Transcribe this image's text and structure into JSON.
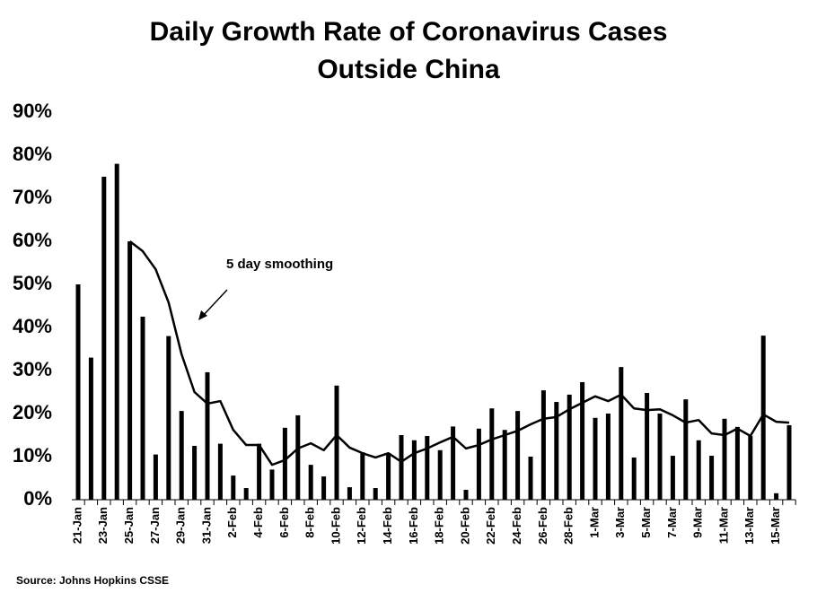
{
  "chart_data": {
    "type": "bar",
    "title": [
      "Daily Growth Rate of Coronavirus Cases",
      "Outside China"
    ],
    "source": "Source: Johns Hopkins CSSE",
    "annotation": "5 day smoothing",
    "categories": [
      "21-Jan",
      null,
      "23-Jan",
      null,
      "25-Jan",
      null,
      "27-Jan",
      null,
      "29-Jan",
      null,
      "31-Jan",
      null,
      "2-Feb",
      null,
      "4-Feb",
      null,
      "6-Feb",
      null,
      "8-Feb",
      null,
      "10-Feb",
      null,
      "12-Feb",
      null,
      "14-Feb",
      null,
      "16-Feb",
      null,
      "18-Feb",
      null,
      "20-Feb",
      null,
      "22-Feb",
      null,
      "24-Feb",
      null,
      "26-Feb",
      null,
      "28-Feb",
      null,
      "1-Mar",
      null,
      "3-Mar",
      null,
      "5-Mar",
      null,
      "7-Mar",
      null,
      "9-Mar",
      null,
      "11-Mar",
      null,
      "13-Mar",
      null,
      "15-Mar",
      null
    ],
    "series": [
      {
        "type": "bar",
        "color": "#000000",
        "values": [
          50,
          33,
          75,
          78,
          60,
          42.5,
          10.5,
          38,
          20.6,
          12.5,
          29.6,
          13,
          5.6,
          2.7,
          13,
          7,
          16.7,
          19.6,
          8.1,
          5.4,
          26.5,
          2.9,
          11,
          2.7,
          10.8,
          15,
          13.8,
          14.8,
          11.5,
          17,
          2.3,
          16.5,
          21.2,
          16.2,
          20.6,
          10,
          25.4,
          22.7,
          24.4,
          27.3,
          19,
          20,
          30.8,
          9.8,
          24.8,
          20,
          10.2,
          23.3,
          13.8,
          10.2,
          18.8,
          16.9,
          14.8,
          38.1,
          1.5,
          17.3
        ]
      },
      {
        "type": "line",
        "color": "#000000",
        "values": [
          null,
          null,
          null,
          null,
          60,
          57.7,
          53.5,
          45.8,
          33.8,
          25,
          22.3,
          22.9,
          16.2,
          12.7,
          12.7,
          8.1,
          9.2,
          11.9,
          13.1,
          11.5,
          15,
          12.1,
          10.8,
          9.8,
          10.8,
          8.8,
          10.8,
          11.9,
          13.3,
          14.6,
          11.9,
          12.7,
          14,
          15,
          16,
          17.5,
          18.8,
          19.2,
          21,
          22.5,
          24,
          22.9,
          24.4,
          21.2,
          20.8,
          21,
          19.6,
          17.9,
          18.5,
          15.4,
          15,
          16.5,
          14.8,
          19.8,
          18.1,
          17.9
        ]
      }
    ],
    "ylim": [
      0,
      90
    ],
    "yticks": [
      {
        "value": 0,
        "label": "0%"
      },
      {
        "value": 10,
        "label": "10%"
      },
      {
        "value": 20,
        "label": "20%"
      },
      {
        "value": 30,
        "label": "30%"
      },
      {
        "value": 40,
        "label": "40%"
      },
      {
        "value": 50,
        "label": "50%"
      },
      {
        "value": 60,
        "label": "60%"
      },
      {
        "value": 70,
        "label": "70%"
      },
      {
        "value": 80,
        "label": "80%"
      },
      {
        "value": 90,
        "label": "90%"
      }
    ],
    "grid": false
  }
}
